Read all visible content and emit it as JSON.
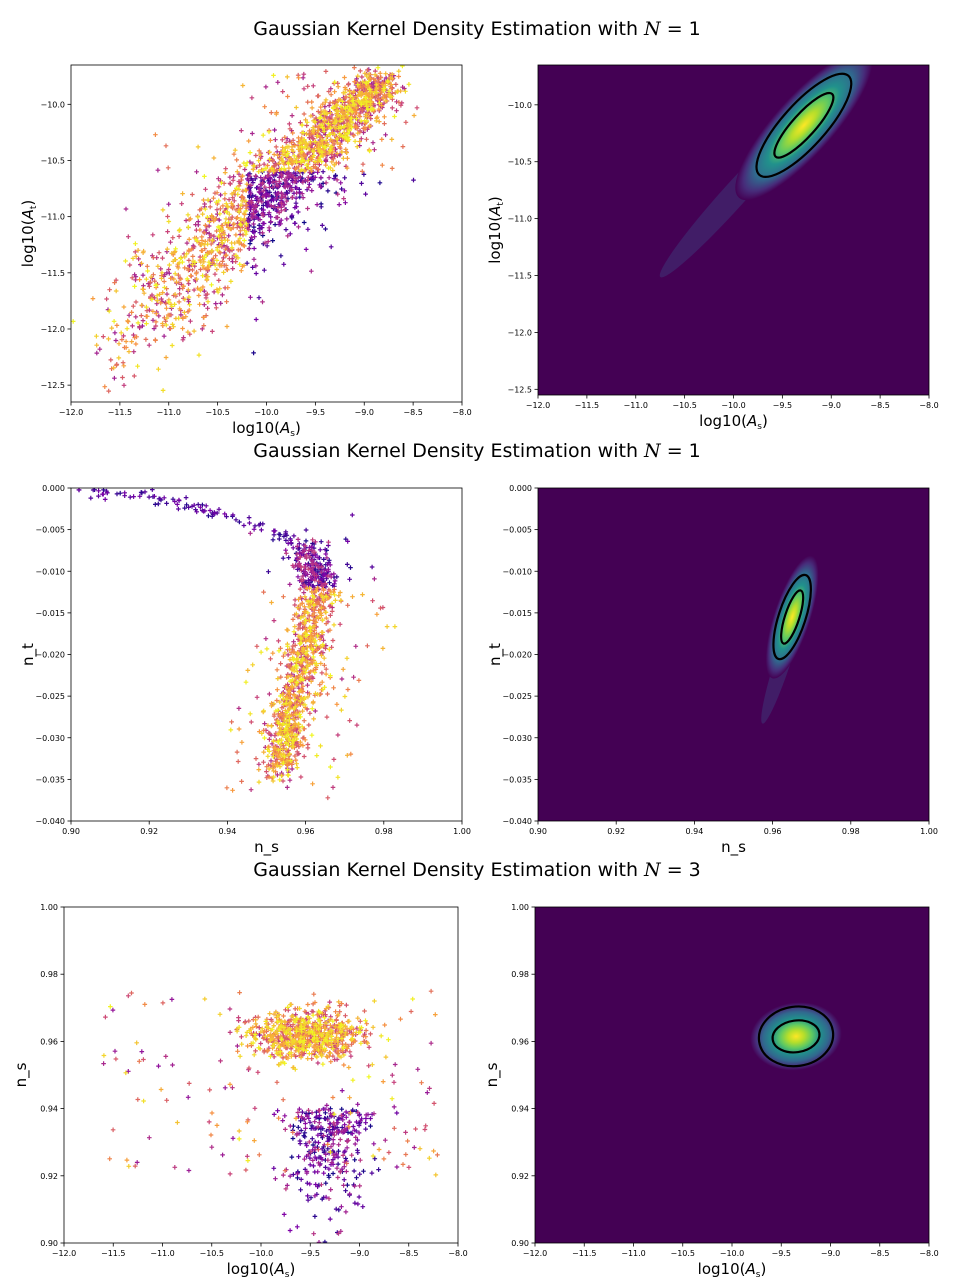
{
  "figure": {
    "rows": [
      {
        "title_prefix": "Gaussian Kernel Density Estimation with ",
        "title_var": "N",
        "title_eq": " = 1"
      },
      {
        "title_prefix": "Gaussian Kernel Density Estimation with ",
        "title_var": "N",
        "title_eq": " = 1"
      },
      {
        "title_prefix": "Gaussian Kernel Density Estimation with ",
        "title_var": "N",
        "title_eq": " = 3"
      }
    ]
  },
  "colors": {
    "viridis_background": "#440154",
    "viridis_mid": "#21918c",
    "viridis_high": "#5ec962",
    "viridis_peak": "#fde725",
    "plasma_low": "#2a0593",
    "plasma_mid": "#9c179e",
    "plasma_high": "#ed7953",
    "plasma_peak": "#f8df25",
    "contour": "#000000"
  },
  "chart_data": [
    {
      "type": "scatter",
      "id": "row1-scatter",
      "xlabel": "log10(A_s)",
      "ylabel": "log10(A_t)",
      "xlim": [
        -12.0,
        -8.0
      ],
      "ylim": [
        -12.65,
        -9.65
      ],
      "xticks": [
        "-12.0",
        "-11.5",
        "-11.0",
        "-10.5",
        "-10.0",
        "-9.5",
        "-9.0",
        "-8.5",
        "-8.0"
      ],
      "yticks": [
        "-12.5",
        "-12.0",
        "-11.5",
        "-11.0",
        "-10.5",
        "-10.0"
      ],
      "marker": "+",
      "colormap": "plasma",
      "points": {
        "ridge_start": [
          -11.7,
          -12.2
        ],
        "ridge_end": [
          -8.8,
          -9.8
        ],
        "count": 4000
      }
    },
    {
      "type": "heatmap",
      "id": "row1-kde",
      "xlabel": "log10(A_s)",
      "ylabel": "log10(A_t)",
      "xlim": [
        -12.0,
        -8.0
      ],
      "ylim": [
        -12.55,
        -9.65
      ],
      "xticks": [
        "-12.0",
        "-11.5",
        "-11.0",
        "-10.5",
        "-10.0",
        "-9.5",
        "-9.0",
        "-8.5",
        "-8.0"
      ],
      "yticks": [
        "-12.5",
        "-12.0",
        "-11.5",
        "-11.0",
        "-10.5",
        "-10.0"
      ],
      "colormap": "viridis",
      "peak": [
        -9.28,
        -10.18
      ],
      "contours": 2
    },
    {
      "type": "scatter",
      "id": "row2-scatter",
      "xlabel": "n_s",
      "ylabel": "n_t",
      "xlim": [
        0.9,
        1.0
      ],
      "ylim": [
        -0.04,
        0.0
      ],
      "xticks": [
        "0.90",
        "0.92",
        "0.94",
        "0.96",
        "0.98",
        "1.00"
      ],
      "yticks": [
        "-0.040",
        "-0.035",
        "-0.030",
        "-0.025",
        "-0.020",
        "-0.015",
        "-0.010",
        "-0.005",
        "0.000"
      ],
      "marker": "+",
      "colormap": "plasma",
      "points": {
        "count": 3000
      }
    },
    {
      "type": "heatmap",
      "id": "row2-kde",
      "xlabel": "n_s",
      "ylabel": "n_t",
      "xlim": [
        0.9,
        1.0
      ],
      "ylim": [
        -0.04,
        0.0
      ],
      "xticks": [
        "0.90",
        "0.92",
        "0.94",
        "0.96",
        "0.98",
        "1.00"
      ],
      "yticks": [
        "-0.040",
        "-0.035",
        "-0.030",
        "-0.025",
        "-0.020",
        "-0.015",
        "-0.010",
        "-0.005",
        "0.000"
      ],
      "colormap": "viridis",
      "peak": [
        0.965,
        -0.0155
      ],
      "contours": 2
    },
    {
      "type": "scatter",
      "id": "row3-scatter",
      "xlabel": "log10(A_s)",
      "ylabel": "n_s",
      "xlim": [
        -12.0,
        -8.0
      ],
      "ylim": [
        0.9,
        1.0
      ],
      "xticks": [
        "-12.0",
        "-11.5",
        "-11.0",
        "-10.5",
        "-10.0",
        "-9.5",
        "-9.0",
        "-8.5",
        "-8.0"
      ],
      "yticks": [
        "0.90",
        "0.92",
        "0.94",
        "0.96",
        "0.98",
        "1.00"
      ],
      "marker": "+",
      "colormap": "plasma",
      "points": {
        "count": 3000
      }
    },
    {
      "type": "heatmap",
      "id": "row3-kde",
      "xlabel": "log10(A_s)",
      "ylabel": "n_s",
      "xlim": [
        -12.0,
        -8.0
      ],
      "ylim": [
        0.9,
        1.0
      ],
      "xticks": [
        "-12.0",
        "-11.5",
        "-11.0",
        "-10.5",
        "-10.0",
        "-9.5",
        "-9.0",
        "-8.5",
        "-8.0"
      ],
      "yticks": [
        "0.90",
        "0.92",
        "0.94",
        "0.96",
        "0.98",
        "1.00"
      ],
      "colormap": "viridis",
      "peak": [
        -9.35,
        0.9615
      ],
      "contours": 2
    }
  ]
}
